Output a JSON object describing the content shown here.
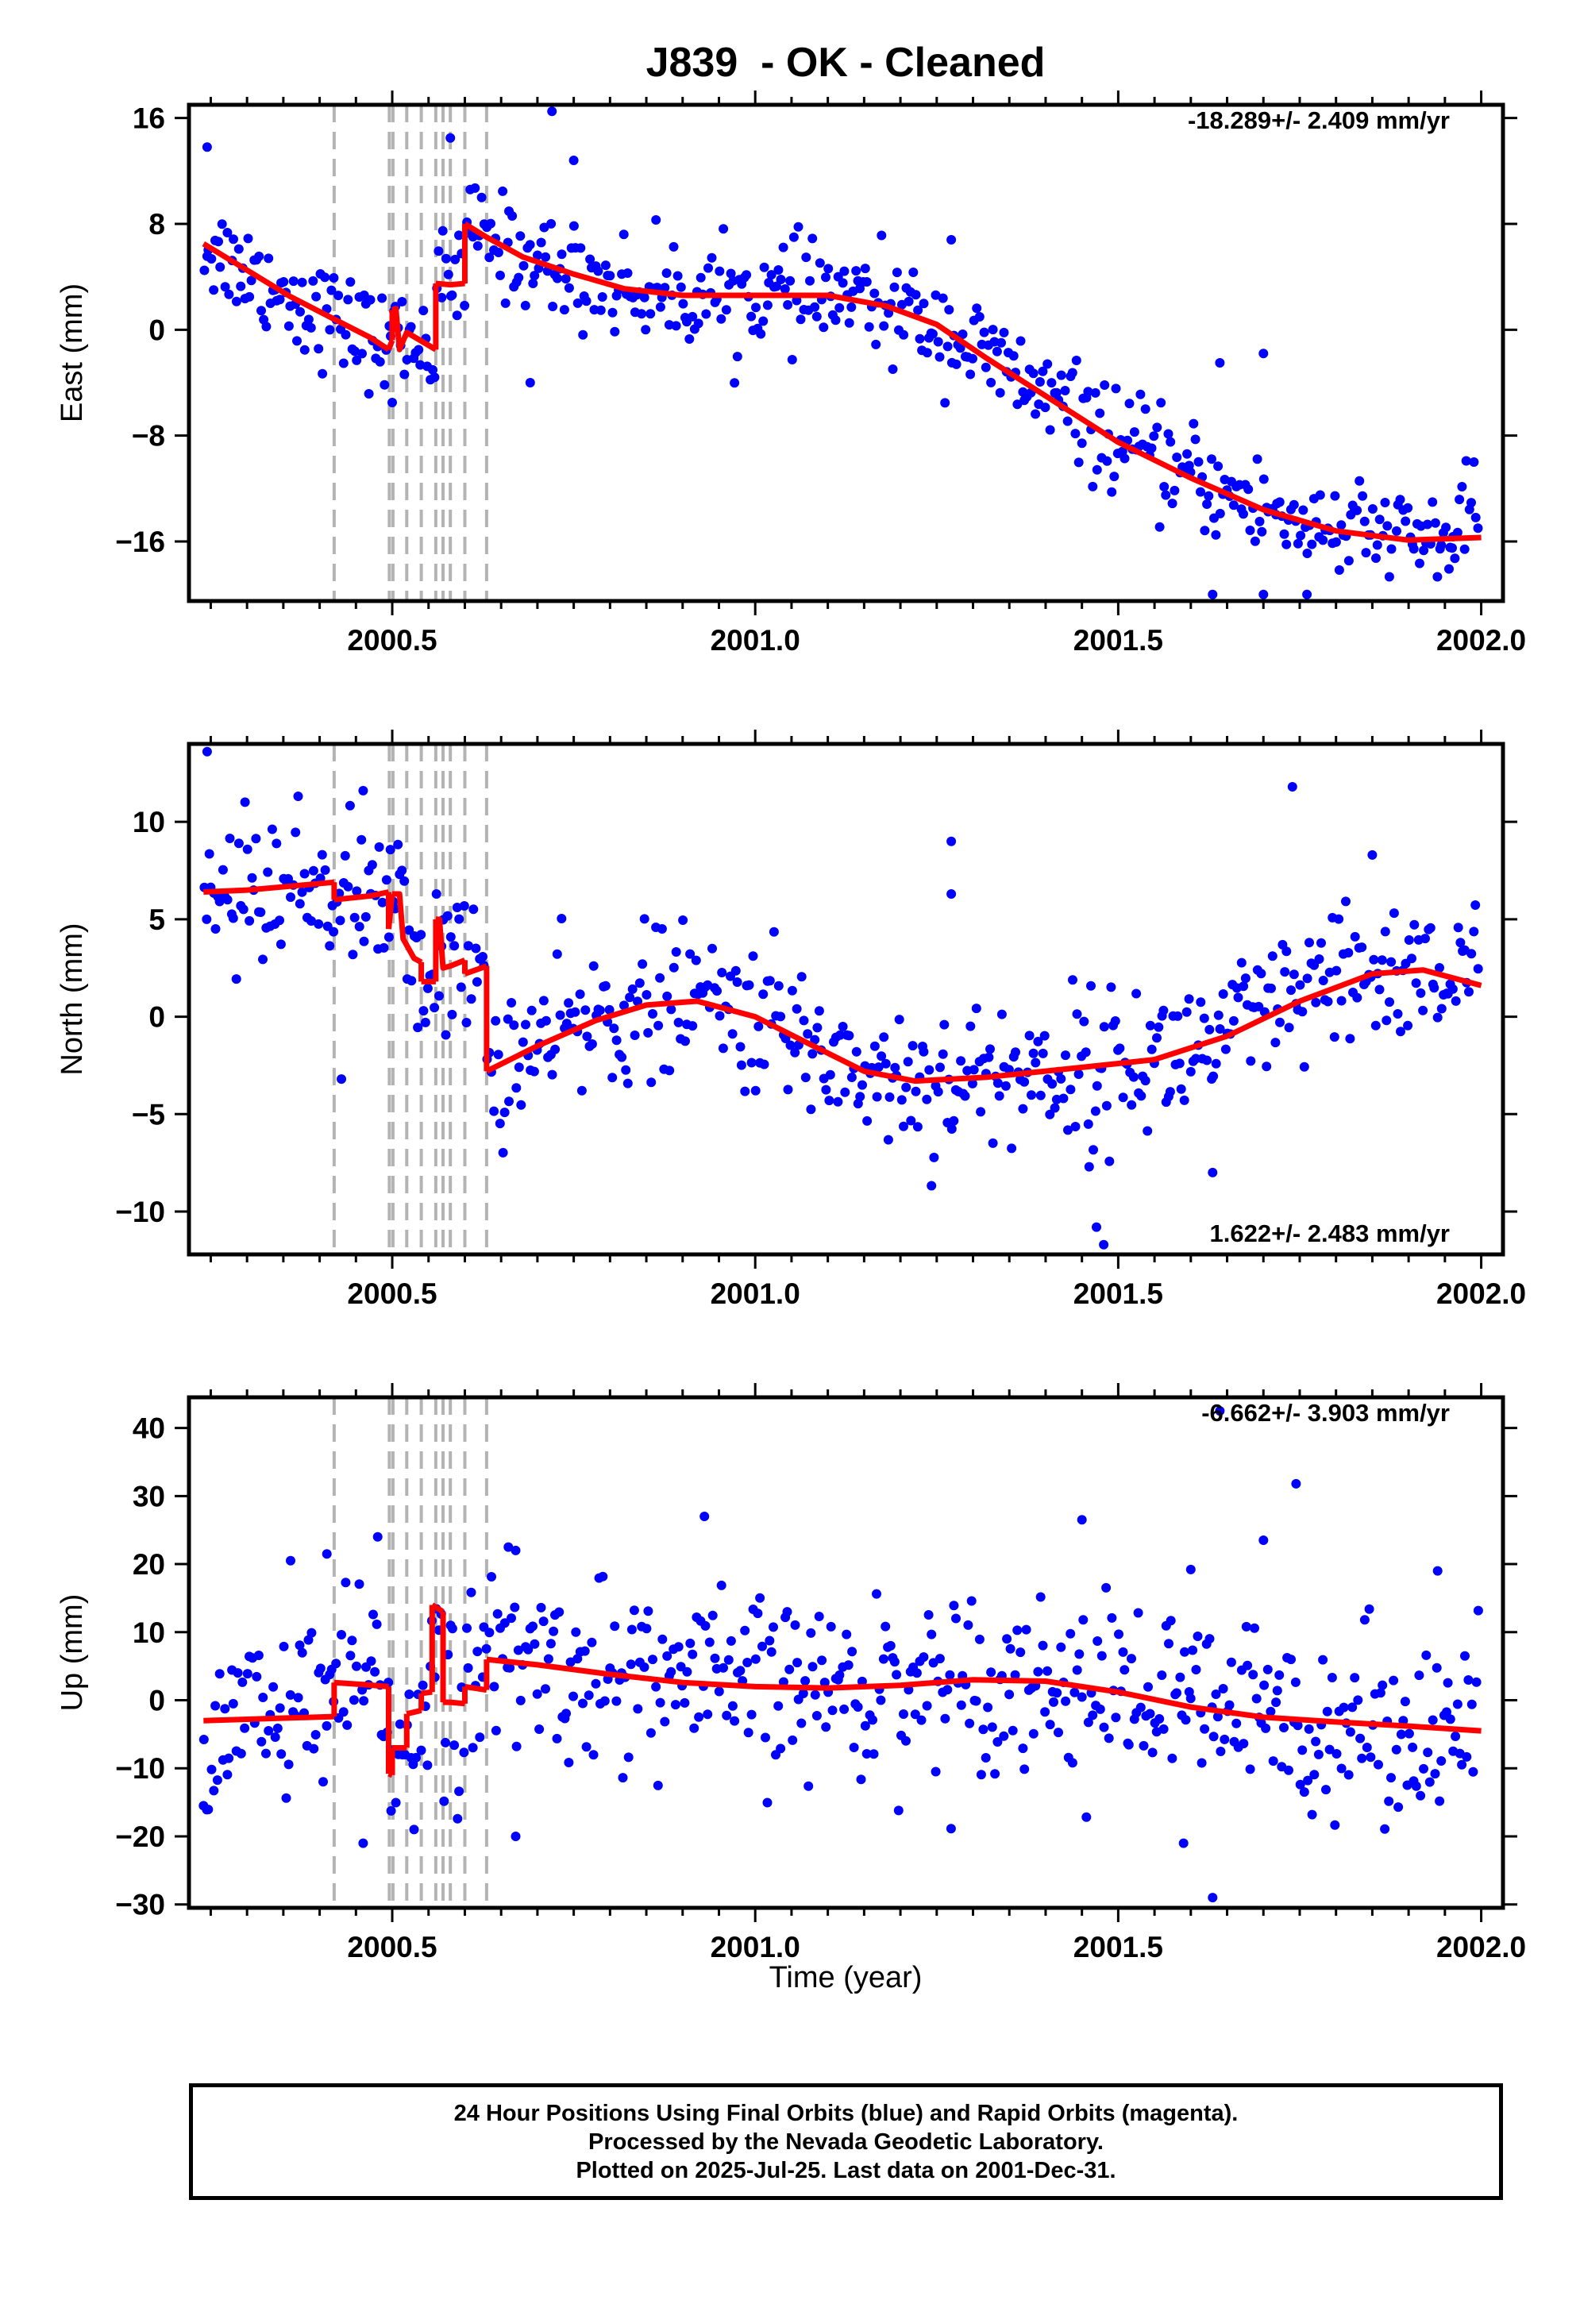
{
  "chart_data": {
    "title": "J839  - OK - Cleaned",
    "type": "scatter",
    "xlabel": "Time (year)",
    "xlim": [
      2000.22,
      2002.03
    ],
    "xticks": [
      2000.5,
      2001.0,
      2001.5,
      2002.0
    ],
    "xtick_labels": [
      "2000.5",
      "2001.0",
      "2001.5",
      "2002.0"
    ],
    "offset_epochs": [
      2000.42,
      2000.496,
      2000.501,
      2000.52,
      2000.54,
      2000.56,
      2000.57,
      2000.58,
      2000.6,
      2000.63
    ],
    "colors": {
      "points": "#0000ff",
      "model": "#ff0000",
      "offsets": "#b3b3b3"
    },
    "panels": [
      {
        "name": "east",
        "ylabel": "East (mm)",
        "ylim": [
          -20.5,
          17
        ],
        "yticks": [
          16,
          8,
          0,
          -8,
          -16
        ],
        "ytick_labels": [
          "16",
          "8",
          "0",
          "−8",
          "−16"
        ],
        "rate_label": "-18.289+/- 2.409 mm/yr",
        "rate_position": "top-right",
        "model_segments": [
          [
            [
              2000.24,
              6.5
            ],
            [
              2000.3,
              4.5
            ],
            [
              2000.36,
              2.5
            ],
            [
              2000.42,
              0.8
            ],
            [
              2000.47,
              -0.6
            ],
            [
              2000.495,
              -1.5
            ]
          ],
          [
            [
              2000.495,
              -1.5
            ],
            [
              2000.5,
              -0.8
            ]
          ],
          [
            [
              2000.5,
              1.5
            ],
            [
              2000.505,
              1.6
            ],
            [
              2000.51,
              -1.5
            ],
            [
              2000.52,
              -0.2
            ],
            [
              2000.56,
              -1.5
            ]
          ],
          [
            [
              2000.56,
              3.5
            ],
            [
              2000.58,
              3.4
            ],
            [
              2000.6,
              3.5
            ]
          ],
          [
            [
              2000.6,
              8.0
            ],
            [
              2000.63,
              7.0
            ],
            [
              2000.68,
              5.5
            ],
            [
              2000.75,
              4.2
            ],
            [
              2000.82,
              3.1
            ],
            [
              2000.9,
              2.6
            ],
            [
              2001.0,
              2.6
            ],
            [
              2001.1,
              2.6
            ],
            [
              2001.18,
              1.8
            ],
            [
              2001.25,
              0.4
            ],
            [
              2001.32,
              -2.2
            ],
            [
              2001.4,
              -5.0
            ],
            [
              2001.5,
              -8.5
            ],
            [
              2001.6,
              -11.2
            ],
            [
              2001.7,
              -13.6
            ],
            [
              2001.8,
              -15.2
            ],
            [
              2001.9,
              -15.9
            ],
            [
              2002.0,
              -15.7
            ]
          ]
        ],
        "sample_count": 560,
        "outliers": [
          [
            2000.245,
            13.8
          ],
          [
            2000.72,
            16.5
          ],
          [
            2000.75,
            12.8
          ],
          [
            2000.69,
            -4.0
          ],
          [
            2001.63,
            -20.0
          ],
          [
            2001.7,
            -20.0
          ],
          [
            2001.76,
            -20.0
          ],
          [
            2001.64,
            -2.5
          ],
          [
            2001.7,
            -1.8
          ],
          [
            2000.5,
            -5.5
          ],
          [
            2000.58,
            14.5
          ],
          [
            2001.99,
            -10.0
          ],
          [
            2001.27,
            6.8
          ],
          [
            2001.96,
            -16.5
          ]
        ]
      },
      {
        "name": "north",
        "ylabel": "North (mm)",
        "ylim": [
          -12.2,
          14
        ],
        "yticks": [
          10,
          5,
          0,
          -5,
          -10
        ],
        "ytick_labels": [
          "10",
          "5",
          "0",
          "−5",
          "−10"
        ],
        "rate_label": "1.622+/- 2.483 mm/yr",
        "rate_position": "bottom-right",
        "model_segments": [
          [
            [
              2000.24,
              6.4
            ],
            [
              2000.3,
              6.5
            ],
            [
              2000.36,
              6.7
            ],
            [
              2000.42,
              6.9
            ]
          ],
          [
            [
              2000.42,
              6.0
            ],
            [
              2000.47,
              6.2
            ],
            [
              2000.495,
              6.4
            ]
          ],
          [
            [
              2000.495,
              4.5
            ],
            [
              2000.5,
              6.3
            ]
          ],
          [
            [
              2000.5,
              6.3
            ],
            [
              2000.51,
              6.3
            ],
            [
              2000.515,
              4.0
            ],
            [
              2000.53,
              3.0
            ],
            [
              2000.54,
              2.8
            ]
          ],
          [
            [
              2000.54,
              1.8
            ],
            [
              2000.56,
              1.8
            ]
          ],
          [
            [
              2000.56,
              5.0
            ],
            [
              2000.565,
              5.0
            ],
            [
              2000.57,
              2.5
            ],
            [
              2000.58,
              2.6
            ],
            [
              2000.6,
              2.9
            ]
          ],
          [
            [
              2000.6,
              2.2
            ],
            [
              2000.63,
              2.6
            ]
          ],
          [
            [
              2000.63,
              -2.8
            ],
            [
              2000.7,
              -1.5
            ],
            [
              2000.78,
              -0.2
            ],
            [
              2000.85,
              0.6
            ],
            [
              2000.92,
              0.8
            ],
            [
              2001.0,
              0.0
            ],
            [
              2001.08,
              -1.5
            ],
            [
              2001.15,
              -2.8
            ],
            [
              2001.22,
              -3.3
            ],
            [
              2001.32,
              -3.1
            ],
            [
              2001.45,
              -2.6
            ],
            [
              2001.55,
              -2.2
            ],
            [
              2001.65,
              -1.0
            ],
            [
              2001.75,
              0.8
            ],
            [
              2001.85,
              2.2
            ],
            [
              2001.92,
              2.4
            ],
            [
              2002.0,
              1.6
            ]
          ]
        ],
        "sample_count": 560,
        "outliers": [
          [
            2000.245,
            13.6
          ],
          [
            2000.46,
            11.6
          ],
          [
            2001.74,
            11.8
          ],
          [
            2001.27,
            9.0
          ],
          [
            2001.27,
            6.3
          ],
          [
            2001.47,
            -10.8
          ],
          [
            2001.48,
            -11.7
          ],
          [
            2000.43,
            -3.2
          ],
          [
            2001.63,
            -8.0
          ],
          [
            2001.85,
            8.3
          ],
          [
            2001.46,
            -7.7
          ]
        ]
      },
      {
        "name": "up",
        "ylabel": "Up (mm)",
        "ylim": [
          -30.5,
          44.5
        ],
        "yticks": [
          40,
          30,
          20,
          10,
          0,
          -10,
          -20,
          -30
        ],
        "ytick_labels": [
          "40",
          "30",
          "20",
          "10",
          "0",
          "−10",
          "−20",
          "−30"
        ],
        "rate_label": "-6.662+/- 3.903 mm/yr",
        "rate_position": "top-right",
        "model_segments": [
          [
            [
              2000.24,
              -3.0
            ],
            [
              2000.3,
              -2.8
            ],
            [
              2000.36,
              -2.6
            ],
            [
              2000.42,
              -2.4
            ]
          ],
          [
            [
              2000.42,
              2.6
            ],
            [
              2000.46,
              2.3
            ],
            [
              2000.495,
              2.0
            ]
          ],
          [
            [
              2000.495,
              -10.8
            ],
            [
              2000.5,
              -11.0
            ]
          ],
          [
            [
              2000.5,
              -7.0
            ],
            [
              2000.52,
              -7.0
            ]
          ],
          [
            [
              2000.52,
              -2.0
            ],
            [
              2000.54,
              -1.5
            ]
          ],
          [
            [
              2000.54,
              1.0
            ],
            [
              2000.555,
              1.2
            ]
          ],
          [
            [
              2000.555,
              14.0
            ],
            [
              2000.57,
              13.0
            ]
          ],
          [
            [
              2000.57,
              -0.3
            ],
            [
              2000.58,
              -0.3
            ],
            [
              2000.6,
              -0.5
            ]
          ],
          [
            [
              2000.6,
              2.0
            ],
            [
              2000.63,
              1.5
            ]
          ],
          [
            [
              2000.63,
              6.0
            ],
            [
              2000.7,
              5.2
            ],
            [
              2000.8,
              3.8
            ],
            [
              2000.9,
              2.6
            ],
            [
              2001.0,
              2.0
            ],
            [
              2001.1,
              1.8
            ],
            [
              2001.2,
              2.2
            ],
            [
              2001.3,
              3.0
            ],
            [
              2001.4,
              2.8
            ],
            [
              2001.5,
              1.2
            ],
            [
              2001.6,
              -1.0
            ],
            [
              2001.7,
              -2.5
            ],
            [
              2001.8,
              -3.2
            ],
            [
              2001.9,
              -3.8
            ],
            [
              2002.0,
              -4.5
            ]
          ]
        ],
        "sample_count": 560,
        "outliers": [
          [
            2001.745,
            31.8
          ],
          [
            2001.64,
            42.5
          ],
          [
            2001.63,
            -29.0
          ],
          [
            2001.59,
            -21.0
          ],
          [
            2000.93,
            27.0
          ],
          [
            2001.45,
            26.5
          ],
          [
            2000.48,
            24.0
          ],
          [
            2000.66,
            22.5
          ],
          [
            2000.67,
            22.0
          ],
          [
            2000.41,
            21.5
          ],
          [
            2000.24,
            -15.5
          ],
          [
            2000.46,
            -21.0
          ],
          [
            2000.53,
            -19.0
          ],
          [
            2000.67,
            -20.0
          ],
          [
            2000.36,
            20.5
          ],
          [
            2001.7,
            23.5
          ],
          [
            2001.6,
            19.2
          ],
          [
            2001.94,
            19.0
          ]
        ]
      }
    ]
  },
  "footer": {
    "line1": "24 Hour Positions Using Final Orbits (blue) and Rapid Orbits (magenta).",
    "line2": "Processed by the Nevada Geodetic Laboratory.",
    "line3": "Plotted on 2025-Jul-25. Last data on 2001-Dec-31."
  }
}
